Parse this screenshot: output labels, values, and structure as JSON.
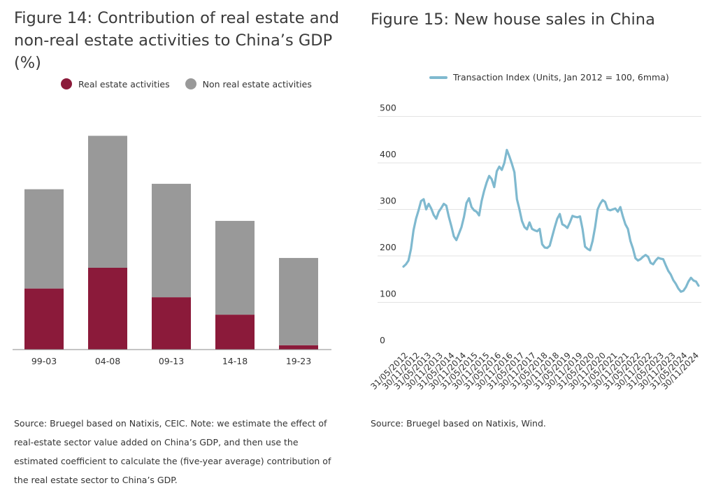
{
  "colors": {
    "real_estate": "#8b1a3a",
    "non_real_estate": "#999999",
    "line": "#7fb9cf",
    "grid": "#e3e3e3",
    "axis": "#888888",
    "text": "#333333"
  },
  "fig14": {
    "title": "Figure 14: Contribution of real estate and non-real estate activities to China’s GDP (%)",
    "source": "Source: Bruegel based on Natixis, CEIC. Note: we estimate the effect of real-estate sector value added on China’s GDP, and then use the estimated coefficient to calculate the (five-year average) contribution of the real estate sector to China’s GDP."
  },
  "fig15": {
    "title": "Figure 15: New house sales in China",
    "source": "Source: Bruegel based on Natixis, Wind."
  },
  "chart_data": [
    {
      "type": "bar",
      "stacked": true,
      "title": "Figure 14: Contribution of real estate and non-real estate activities to China’s GDP (%)",
      "categories": [
        "99-03",
        "04-08",
        "09-13",
        "14-18",
        "19-23"
      ],
      "series": [
        {
          "name": "Real estate activities",
          "values": [
            2.8,
            3.75,
            2.4,
            1.6,
            0.2
          ]
        },
        {
          "name": "Non real estate activities",
          "values": [
            4.55,
            6.05,
            5.2,
            4.3,
            4.0
          ]
        }
      ],
      "ylim": [
        0,
        10.5
      ],
      "grid": false,
      "legend": "top"
    },
    {
      "type": "line",
      "title": "Figure 15: New house sales in China",
      "series": [
        {
          "name": "Transaction Index (Units, Jan 2012 = 100, 6mma)",
          "values": [
            177,
            182,
            190,
            215,
            255,
            280,
            298,
            318,
            322,
            300,
            312,
            302,
            288,
            280,
            295,
            303,
            312,
            308,
            284,
            264,
            242,
            234,
            248,
            262,
            284,
            314,
            324,
            305,
            298,
            295,
            287,
            318,
            340,
            358,
            372,
            365,
            348,
            382,
            392,
            385,
            400,
            428,
            414,
            398,
            380,
            322,
            300,
            275,
            262,
            257,
            272,
            258,
            255,
            253,
            258,
            225,
            218,
            217,
            222,
            242,
            262,
            280,
            290,
            268,
            265,
            260,
            272,
            286,
            284,
            283,
            285,
            258,
            220,
            215,
            212,
            232,
            262,
            300,
            312,
            320,
            316,
            300,
            298,
            300,
            302,
            295,
            305,
            285,
            268,
            258,
            232,
            216,
            195,
            190,
            193,
            198,
            202,
            198,
            185,
            182,
            190,
            196,
            194,
            193,
            180,
            168,
            160,
            148,
            140,
            130,
            123,
            125,
            133,
            145,
            153,
            147,
            145,
            136
          ]
        }
      ],
      "x_tick_labels": [
        "31/05/2012",
        "30/11/2012",
        "31/05/2013",
        "30/11/2013",
        "31/05/2014",
        "30/11/2014",
        "31/05/2015",
        "30/11/2015",
        "31/05/2016",
        "30/11/2016",
        "31/05/2017",
        "30/11/2017",
        "31/05/2018",
        "30/11/2018",
        "31/05/2019",
        "30/11/2019",
        "31/05/2020",
        "30/11/2020",
        "31/05/2021",
        "30/11/2021",
        "31/05/2022",
        "30/11/2022",
        "31/05/2023",
        "30/11/2023",
        "31/05/2024",
        "30/11/2024"
      ],
      "y_ticks": [
        0,
        100,
        200,
        300,
        400,
        500
      ],
      "ylim": [
        0,
        500
      ],
      "grid": true,
      "legend": "top"
    }
  ]
}
